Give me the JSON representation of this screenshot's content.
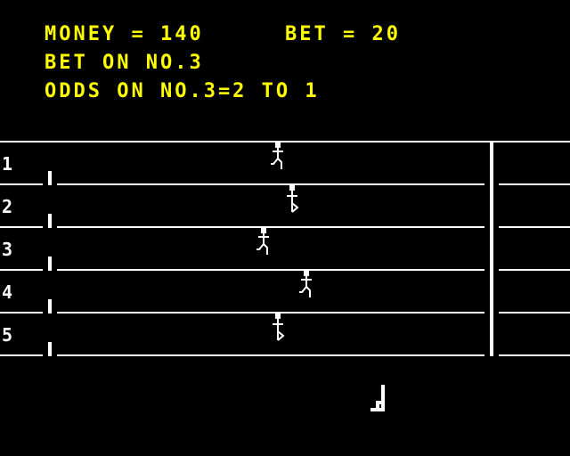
{
  "hud": {
    "money_text": "MONEY = 140",
    "bet_text": "BET = 20",
    "bet_on_text": "BET ON NO.3",
    "odds_text": "ODDS ON NO.3=2 TO 1"
  },
  "lanes": [
    {
      "number": "1"
    },
    {
      "number": "2"
    },
    {
      "number": "3"
    },
    {
      "number": "4"
    },
    {
      "number": "5"
    }
  ],
  "colors": {
    "background": "#000000",
    "hud_text": "#ffff00",
    "track": "#ffffff"
  }
}
